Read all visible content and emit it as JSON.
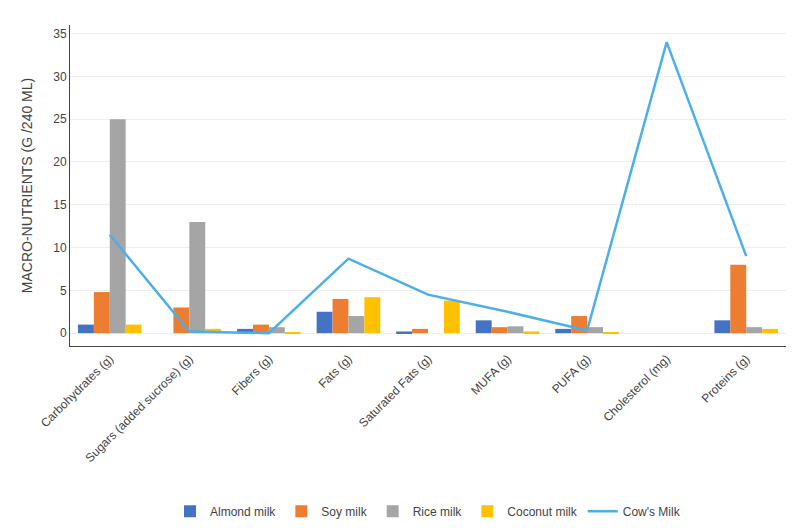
{
  "chart_data": {
    "type": "bar",
    "ylabel": "MACRO-NUTRIENTS (G /240 ML)",
    "categories": [
      "Carbohydrates (g)",
      "Sugars (added sucrose) (g)",
      "Fibers (g)",
      "Fats (g)",
      "Saturated Fats (g)",
      "MUFA (g)",
      "PUFA (g)",
      "Cholesterol (mg)",
      "Proteins (g)"
    ],
    "series": [
      {
        "name": "Almond milk",
        "type": "bar",
        "color": "#4472C4",
        "values": [
          1.0,
          0.0,
          0.5,
          2.5,
          0.2,
          1.5,
          0.5,
          0.0,
          1.5
        ]
      },
      {
        "name": "Soy milk",
        "type": "bar",
        "color": "#ED7D31",
        "values": [
          4.8,
          3.0,
          1.0,
          4.0,
          0.5,
          0.7,
          2.0,
          0.0,
          8.0
        ]
      },
      {
        "name": "Rice milk",
        "type": "bar",
        "color": "#A5A5A5",
        "values": [
          25.0,
          13.0,
          0.7,
          2.0,
          0.0,
          0.8,
          0.7,
          0.0,
          0.7
        ]
      },
      {
        "name": "Coconut milk",
        "type": "bar",
        "color": "#FFC000",
        "values": [
          1.0,
          0.5,
          0.1,
          4.2,
          3.8,
          0.2,
          0.1,
          0.0,
          0.5
        ]
      },
      {
        "name": "Cow's Milk",
        "type": "line",
        "color": "#4DAFEA",
        "values": [
          11.5,
          0.2,
          0.0,
          8.7,
          4.5,
          2.5,
          0.3,
          34.0,
          9.0
        ]
      }
    ],
    "ylim": [
      -1.5,
      36
    ],
    "yticks": [
      0,
      5,
      10,
      15,
      20,
      25,
      30,
      35
    ],
    "grid": true,
    "legend": "bottom"
  }
}
